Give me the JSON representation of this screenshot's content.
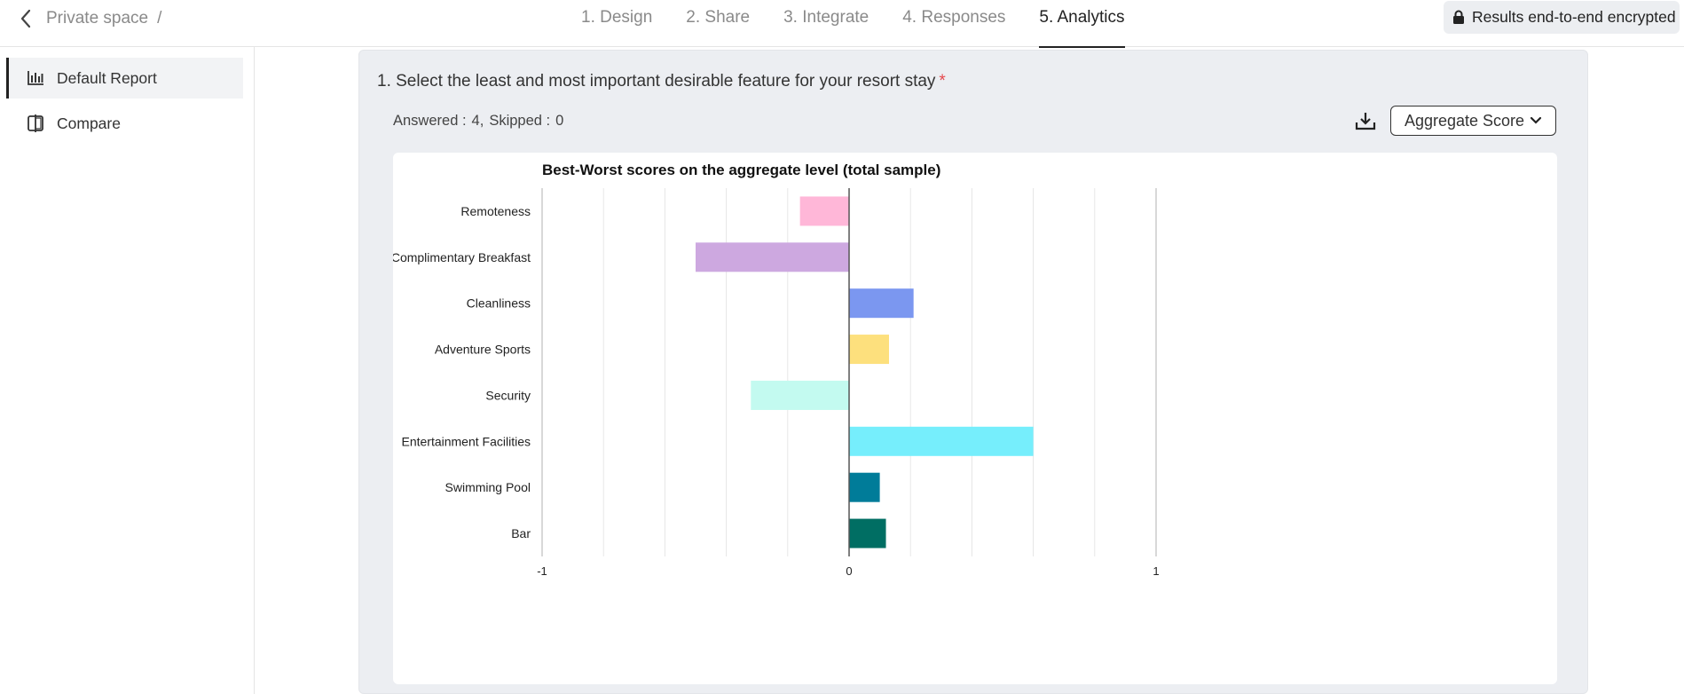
{
  "header": {
    "breadcrumb": "Private space",
    "breadcrumb_sep": "/",
    "tabs": [
      {
        "label": "1. Design"
      },
      {
        "label": "2. Share"
      },
      {
        "label": "3. Integrate"
      },
      {
        "label": "4. Responses"
      },
      {
        "label": "5. Analytics"
      }
    ],
    "encryption_label": "Results end-to-end encrypted"
  },
  "sidebar": {
    "items": [
      {
        "label": "Default Report",
        "icon": "bar-chart-icon"
      },
      {
        "label": "Compare",
        "icon": "compare-icon"
      }
    ]
  },
  "main": {
    "question": "1. Select the least and most important desirable feature for your resort stay",
    "required_mark": "*",
    "answered_label": "Answered :",
    "answered_value": "4,",
    "skipped_label": "Skipped :",
    "skipped_value": "0",
    "score_dropdown": "Aggregate Score"
  },
  "chart_data": {
    "type": "bar",
    "orientation": "horizontal",
    "title": "Best-Worst scores on the aggregate level (total sample)",
    "categories": [
      "Remoteness",
      "Complimentary Breakfast",
      "Cleanliness",
      "Adventure Sports",
      "Security",
      "Entertainment Facilities",
      "Swimming Pool",
      "Bar"
    ],
    "values": [
      -0.16,
      -0.5,
      0.21,
      0.13,
      -0.32,
      0.6,
      0.1,
      0.12
    ],
    "colors": [
      "#ffb7d8",
      "#cda8e0",
      "#7b97f0",
      "#fde07d",
      "#c3faf0",
      "#76eefc",
      "#007c99",
      "#006e63"
    ],
    "xlim": [
      -1,
      1
    ],
    "xticks": [
      "-1",
      "0",
      "1"
    ],
    "grid": true
  }
}
